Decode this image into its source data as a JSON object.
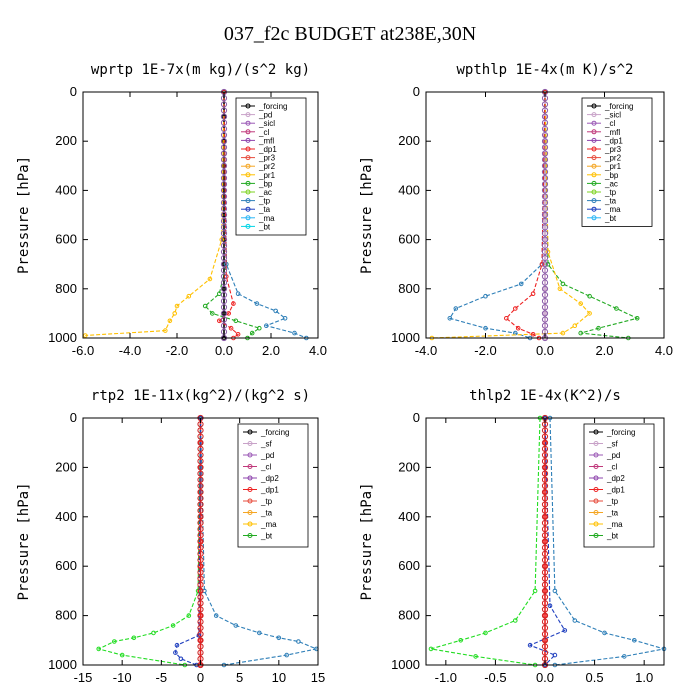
{
  "figure": {
    "title": "037_f2c  BUDGET at238E,30N"
  },
  "chart_data": [
    {
      "type": "line",
      "title": "wprtp  1E-7x(m kg)/(s^2 kg)",
      "ylabel": "Pressure [hPa]",
      "xlabel": "",
      "xlim": [
        -6,
        4
      ],
      "ylim": [
        1000,
        0
      ],
      "xticks": [
        "-6.0",
        "-4.0",
        "-2.0",
        "0.0",
        "2.0",
        "4.0"
      ],
      "yticks": [
        "0",
        "200",
        "400",
        "600",
        "800",
        "1000"
      ],
      "legend": [
        "_forcing",
        "_pd",
        "_sicl",
        "_cl",
        "_mfl",
        "_dp1",
        "_pr3",
        "_pr2",
        "_pr1",
        "_bp",
        "_ac",
        "_tp",
        "_ta",
        "_ma",
        "_bt"
      ],
      "series": [
        {
          "name": "_forcing",
          "color": "#000000",
          "x": [
            0,
            0,
            0,
            0,
            0,
            0,
            0,
            0,
            0,
            0,
            0
          ],
          "y": [
            0,
            100,
            200,
            300,
            400,
            500,
            600,
            700,
            800,
            900,
            1000
          ]
        },
        {
          "name": "_pr1",
          "color": "#FFC000",
          "x": [
            0,
            -0.1,
            -0.6,
            -1.5,
            -2.0,
            -2.1,
            -2.3,
            -2.5,
            -5.9
          ],
          "y": [
            0,
            600,
            760,
            830,
            870,
            900,
            930,
            970,
            990
          ]
        },
        {
          "name": "_bp",
          "color": "#22AA22",
          "x": [
            0,
            0.1,
            -0.2,
            -0.8,
            -0.5,
            0.5,
            1.5,
            1.2,
            1.0
          ],
          "y": [
            0,
            700,
            820,
            870,
            900,
            930,
            960,
            980,
            1000
          ]
        },
        {
          "name": "_tp",
          "color": "#2E7FB8",
          "x": [
            0,
            0.1,
            0.6,
            1.4,
            2.2,
            2.6,
            1.8,
            3.0,
            3.5
          ],
          "y": [
            0,
            700,
            820,
            860,
            890,
            920,
            950,
            980,
            1000
          ]
        },
        {
          "name": "_dp1",
          "color": "#EE2222",
          "x": [
            0,
            0.1,
            0.4,
            0.2,
            -0.2,
            0.3,
            0.6,
            0.4
          ],
          "y": [
            0,
            750,
            860,
            900,
            930,
            960,
            985,
            1000
          ]
        }
      ]
    },
    {
      "type": "line",
      "title": "wpthlp  1E-4x(m K)/s^2",
      "ylabel": "Pressure [hPa]",
      "xlabel": "",
      "xlim": [
        -4,
        4
      ],
      "ylim": [
        1000,
        0
      ],
      "xticks": [
        "-4.0",
        "-2.0",
        "0.0",
        "2.0",
        "4.0"
      ],
      "yticks": [
        "0",
        "200",
        "400",
        "600",
        "800",
        "1000"
      ],
      "legend": [
        "_forcing",
        "_sicl",
        "_cl",
        "_mfl",
        "_dp1",
        "_pr3",
        "_pr2",
        "_pr1",
        "_bp",
        "_ac",
        "_tp",
        "_ta",
        "_ma",
        "_bt"
      ],
      "series": [
        {
          "name": "_forcing",
          "color": "#C8A2C8",
          "x": [
            0,
            0,
            0,
            0,
            0,
            0,
            0,
            0,
            0,
            0,
            0
          ],
          "y": [
            0,
            100,
            200,
            300,
            400,
            500,
            600,
            700,
            800,
            900,
            1000
          ]
        },
        {
          "name": "_bp",
          "color": "#22AA22",
          "x": [
            0,
            0.1,
            0.6,
            1.5,
            2.4,
            3.1,
            1.8,
            1.2,
            2.8
          ],
          "y": [
            0,
            700,
            780,
            830,
            880,
            920,
            960,
            980,
            1000
          ]
        },
        {
          "name": "_tp",
          "color": "#2E7FB8",
          "x": [
            0,
            -0.1,
            -0.8,
            -2.0,
            -3.0,
            -3.2,
            -2.0,
            -1.0,
            -0.5
          ],
          "y": [
            0,
            700,
            780,
            830,
            880,
            920,
            960,
            980,
            1000
          ]
        },
        {
          "name": "_pr1",
          "color": "#FFC000",
          "x": [
            0,
            0.1,
            0.5,
            1.2,
            1.5,
            1.0,
            0.6,
            -3.8
          ],
          "y": [
            0,
            650,
            800,
            860,
            900,
            950,
            980,
            1000
          ]
        },
        {
          "name": "_dp1",
          "color": "#EE2222",
          "x": [
            0,
            -0.1,
            -0.4,
            -1.0,
            -1.3,
            -0.9,
            -0.4,
            -0.2
          ],
          "y": [
            0,
            700,
            820,
            880,
            920,
            960,
            985,
            1000
          ]
        }
      ]
    },
    {
      "type": "line",
      "title": "rtp2  1E-11x(kg^2)/(kg^2 s)",
      "ylabel": "Pressure [hPa]",
      "xlabel": "",
      "xlim": [
        -15,
        15
      ],
      "ylim": [
        1000,
        0
      ],
      "xticks": [
        "-15",
        "-10",
        "-5",
        "0",
        "5",
        "10",
        "15"
      ],
      "yticks": [
        "0",
        "200",
        "400",
        "600",
        "800",
        "1000"
      ],
      "legend": [
        "_forcing",
        "_sf",
        "_pd",
        "_cl",
        "_dp2",
        "_dp1",
        "_tp",
        "_ta",
        "_ma",
        "_bt"
      ],
      "series": [
        {
          "name": "_forcing",
          "color": "#EE2222",
          "x": [
            0,
            0,
            0,
            0,
            0,
            0,
            0,
            0,
            0,
            0,
            0
          ],
          "y": [
            0,
            100,
            200,
            300,
            400,
            500,
            600,
            700,
            800,
            900,
            1000
          ]
        },
        {
          "name": "_dp1",
          "color": "#22DD22",
          "x": [
            0,
            -0.3,
            -1.5,
            -3.5,
            -6.0,
            -8.5,
            -11,
            -13,
            -10,
            -2
          ],
          "y": [
            0,
            700,
            800,
            840,
            870,
            890,
            905,
            935,
            960,
            1000
          ]
        },
        {
          "name": "_tp",
          "color": "#2E7FB8",
          "x": [
            0,
            0.5,
            2.0,
            4.5,
            7.5,
            10,
            12.5,
            14.8,
            11,
            3
          ],
          "y": [
            0,
            700,
            800,
            840,
            870,
            890,
            905,
            935,
            960,
            1000
          ]
        },
        {
          "name": "_ta",
          "color": "#1F3FBF",
          "x": [
            0,
            -0.2,
            -3.0,
            -3.2,
            -2.5,
            -0.5
          ],
          "y": [
            0,
            880,
            920,
            950,
            975,
            1000
          ]
        }
      ]
    },
    {
      "type": "line",
      "title": "thlp2  1E-4x(K^2)/s",
      "ylabel": "Pressure [hPa]",
      "xlabel": "",
      "xlim": [
        -1.2,
        1.2
      ],
      "ylim": [
        1000,
        0
      ],
      "xticks": [
        "-1.0",
        "-0.5",
        "0.0",
        "0.5",
        "1.0"
      ],
      "yticks": [
        "0",
        "200",
        "400",
        "600",
        "800",
        "1000"
      ],
      "legend": [
        "_forcing",
        "_sf",
        "_pd",
        "_cl",
        "_dp2",
        "_dp1",
        "_tp",
        "_ta",
        "_ma",
        "_bt"
      ],
      "series": [
        {
          "name": "_forcing",
          "color": "#EE2222",
          "x": [
            0,
            0,
            0,
            0,
            0,
            0,
            0,
            0,
            0,
            0,
            0
          ],
          "y": [
            0,
            100,
            200,
            300,
            400,
            500,
            600,
            700,
            800,
            900,
            1000
          ]
        },
        {
          "name": "_dp1",
          "color": "#22DD22",
          "x": [
            -0.05,
            -0.1,
            -0.3,
            -0.6,
            -0.85,
            -1.15,
            -0.7,
            -0.1
          ],
          "y": [
            0,
            700,
            820,
            870,
            900,
            935,
            965,
            1000
          ]
        },
        {
          "name": "_tp",
          "color": "#2E7FB8",
          "x": [
            0.05,
            0.1,
            0.3,
            0.6,
            0.9,
            1.2,
            0.8,
            0.1
          ],
          "y": [
            0,
            700,
            820,
            870,
            900,
            935,
            965,
            1000
          ]
        },
        {
          "name": "_ta",
          "color": "#1F3FBF",
          "x": [
            0,
            0.05,
            0.2,
            -0.15,
            0.1,
            0
          ],
          "y": [
            0,
            760,
            860,
            920,
            960,
            1000
          ]
        }
      ]
    }
  ]
}
